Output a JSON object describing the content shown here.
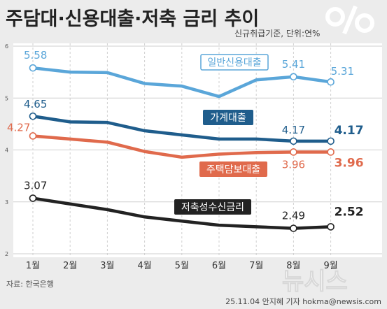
{
  "header": {
    "title": "주담대·신용대출·저축 금리 추이",
    "subtitle": "신규취급기준, 단위:연%",
    "logo": "%"
  },
  "footer": {
    "source": "자료: 한국은행",
    "credit": "25.11.04 안지혜 기자 hokma@newsis.com",
    "watermark": "뉴시스"
  },
  "colors": {
    "background": "#ececec",
    "plot_bg": "#ffffff",
    "grid": "#cfcfcf",
    "axis_text": "#555555",
    "series": [
      "#5aa6d9",
      "#1f5d8c",
      "#e06a4c",
      "#222222"
    ]
  },
  "chart_data": {
    "type": "line",
    "categories": [
      "1월",
      "2월",
      "3월",
      "4월",
      "5월",
      "6월",
      "7월",
      "8월",
      "9월"
    ],
    "ylim": [
      2,
      6
    ],
    "yticks": [
      2,
      3,
      4,
      5,
      6
    ],
    "grid": true,
    "series": [
      {
        "name": "일반신용대출",
        "values": [
          5.58,
          5.5,
          5.49,
          5.28,
          5.23,
          5.03,
          5.35,
          5.41,
          5.31
        ],
        "labels": [
          {
            "index": 0,
            "text": "5.58",
            "bold": false
          },
          {
            "index": 7,
            "text": "5.41",
            "bold": false
          },
          {
            "index": 8,
            "text": "5.31",
            "bold": false
          }
        ],
        "tag_style": "outline"
      },
      {
        "name": "가계대출",
        "values": [
          4.65,
          4.54,
          4.53,
          4.37,
          4.29,
          4.21,
          4.21,
          4.17,
          4.17
        ],
        "labels": [
          {
            "index": 0,
            "text": "4.65",
            "bold": false
          },
          {
            "index": 7,
            "text": "4.17",
            "bold": false
          },
          {
            "index": 8,
            "text": "4.17",
            "bold": true
          }
        ],
        "tag_style": "filled"
      },
      {
        "name": "주택담보대출",
        "values": [
          4.27,
          4.21,
          4.15,
          3.97,
          3.86,
          3.92,
          3.95,
          3.96,
          3.96
        ],
        "labels": [
          {
            "index": 0,
            "text": "4.27",
            "bold": false
          },
          {
            "index": 7,
            "text": "3.96",
            "bold": false
          },
          {
            "index": 8,
            "text": "3.96",
            "bold": true
          }
        ],
        "tag_style": "filled"
      },
      {
        "name": "저축성수신금리",
        "values": [
          3.07,
          2.96,
          2.85,
          2.71,
          2.63,
          2.55,
          2.52,
          2.49,
          2.52
        ],
        "labels": [
          {
            "index": 0,
            "text": "3.07",
            "bold": false
          },
          {
            "index": 7,
            "text": "2.49",
            "bold": false
          },
          {
            "index": 8,
            "text": "2.52",
            "bold": true
          }
        ],
        "tag_style": "filled"
      }
    ]
  }
}
